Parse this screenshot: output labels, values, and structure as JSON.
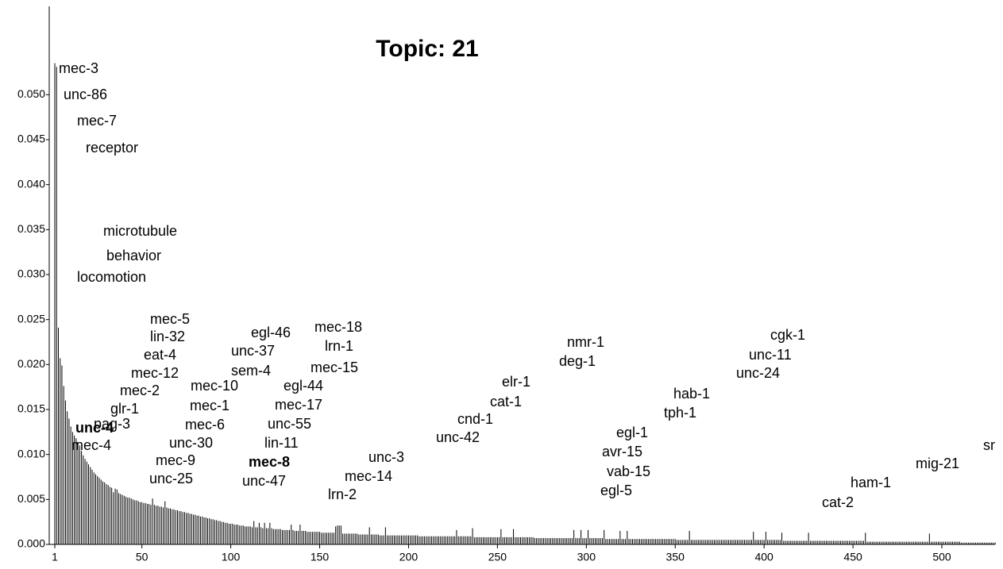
{
  "chart_data": {
    "type": "bar",
    "title": "Topic:  21",
    "color": "#000000",
    "xlim": [
      1,
      530
    ],
    "xticks": [
      1,
      50,
      100,
      150,
      200,
      250,
      300,
      350,
      400,
      450,
      500
    ],
    "ylim": [
      0,
      0.06
    ],
    "yticks": [
      {
        "value": 0,
        "label": "0.000"
      },
      {
        "value": 0.005,
        "label": "0.005"
      },
      {
        "value": 0.01,
        "label": "0.010"
      },
      {
        "value": 0.015,
        "label": "0.015"
      },
      {
        "value": 0.02,
        "label": "0.020"
      },
      {
        "value": 0.025,
        "label": "0.025"
      },
      {
        "value": 0.03,
        "label": "0.030"
      },
      {
        "value": 0.035,
        "label": "0.035"
      },
      {
        "value": 0.04,
        "label": "0.040"
      },
      {
        "value": 0.045,
        "label": "0.045"
      },
      {
        "value": 0.05,
        "label": "0.050"
      }
    ],
    "x": [
      1,
      2,
      3,
      4,
      5,
      6,
      7,
      8,
      9,
      10,
      11,
      12,
      13,
      14,
      15,
      16,
      17,
      18,
      19,
      20,
      21,
      22,
      23,
      24,
      25,
      26,
      27,
      28,
      29,
      30,
      31,
      32,
      33,
      34,
      35,
      36,
      37,
      38,
      39,
      40,
      41,
      42,
      43,
      44,
      45,
      46,
      47,
      48,
      49,
      50,
      51,
      52,
      53,
      54,
      55,
      56,
      57,
      58,
      59,
      60,
      61,
      62,
      63,
      64,
      65,
      66,
      67,
      68,
      69,
      70,
      71,
      72,
      73,
      74,
      75,
      76,
      77,
      78,
      79,
      80,
      81,
      82,
      83,
      84,
      85,
      86,
      87,
      88,
      89,
      90,
      91,
      92,
      93,
      94,
      95,
      96,
      97,
      98,
      99,
      100,
      101,
      102,
      103,
      104,
      105,
      106,
      107,
      108,
      109,
      110,
      111,
      112,
      113,
      114,
      115,
      116,
      117,
      118,
      119,
      120,
      121,
      122,
      123,
      124,
      125,
      126,
      127,
      128,
      129,
      130,
      131,
      132,
      133,
      134,
      135,
      136,
      137,
      138,
      139,
      140,
      141,
      142,
      143,
      144,
      145,
      146,
      147,
      148,
      149,
      150,
      151,
      152,
      153,
      154,
      155,
      156,
      157,
      158,
      159,
      160,
      161,
      162,
      163,
      164,
      165,
      166,
      167,
      168,
      169,
      170,
      171,
      172,
      173,
      174,
      175,
      176,
      177,
      178,
      179,
      180,
      181,
      182,
      183,
      184,
      185,
      186,
      187,
      188,
      189,
      190,
      191,
      192,
      193,
      194,
      195,
      196,
      197,
      198,
      199,
      200,
      201,
      202,
      203,
      204,
      205,
      206,
      207,
      208,
      209,
      210,
      211,
      212,
      213,
      214,
      215,
      216,
      217,
      218,
      219,
      220,
      221,
      222,
      223,
      224,
      225,
      226,
      227,
      228,
      229,
      230,
      231,
      232,
      233,
      234,
      235,
      236,
      237,
      238,
      239,
      240,
      241,
      242,
      243,
      244,
      245,
      246,
      247,
      248,
      249,
      250,
      251,
      252,
      253,
      254,
      255,
      256,
      257,
      258,
      259,
      260,
      261,
      262,
      263,
      264,
      265,
      266,
      267,
      268,
      269,
      270,
      271,
      272,
      273,
      274,
      275,
      276,
      277,
      278,
      279,
      280,
      281,
      282,
      283,
      284,
      285,
      286,
      287,
      288,
      289,
      290,
      291,
      292,
      293,
      294,
      295,
      296,
      297,
      298,
      299,
      300,
      301,
      302,
      303,
      304,
      305,
      306,
      307,
      308,
      309,
      310,
      311,
      312,
      313,
      314,
      315,
      316,
      317,
      318,
      319,
      320,
      321,
      322,
      323,
      324,
      325,
      326,
      327,
      328,
      329,
      330,
      331,
      332,
      333,
      334,
      335,
      336,
      337,
      338,
      339,
      340,
      341,
      342,
      343,
      344,
      345,
      346,
      347,
      348,
      349,
      350,
      351,
      352,
      353,
      354,
      355,
      356,
      357,
      358,
      359,
      360,
      361,
      362,
      363,
      364,
      365,
      366,
      367,
      368,
      369,
      370,
      371,
      372,
      373,
      374,
      375,
      376,
      377,
      378,
      379,
      380,
      381,
      382,
      383,
      384,
      385,
      386,
      387,
      388,
      389,
      390,
      391,
      392,
      393,
      394,
      395,
      396,
      397,
      398,
      399,
      400,
      401,
      402,
      403,
      404,
      405,
      406,
      407,
      408,
      409,
      410,
      411,
      412,
      413,
      414,
      415,
      416,
      417,
      418,
      419,
      420,
      421,
      422,
      423,
      424,
      425,
      426,
      427,
      428,
      429,
      430,
      431,
      432,
      433,
      434,
      435,
      436,
      437,
      438,
      439,
      440,
      441,
      442,
      443,
      444,
      445,
      446,
      447,
      448,
      449,
      450,
      451,
      452,
      453,
      454,
      455,
      456,
      457,
      458,
      459,
      460,
      461,
      462,
      463,
      464,
      465,
      466,
      467,
      468,
      469,
      470,
      471,
      472,
      473,
      474,
      475,
      476,
      477,
      478,
      479,
      480,
      481,
      482,
      483,
      484,
      485,
      486,
      487,
      488,
      489,
      490,
      491,
      492,
      493,
      494,
      495,
      496,
      497,
      498,
      499,
      500,
      501,
      502,
      503,
      504,
      505,
      506,
      507,
      508,
      509,
      510,
      511,
      512,
      513,
      514,
      515,
      516,
      517,
      518,
      519,
      520,
      521,
      522,
      523,
      524,
      525,
      526,
      527,
      528,
      529,
      530
    ],
    "values": [
      0.0535,
      0.0531,
      0.0241,
      0.0207,
      0.0199,
      0.0176,
      0.016,
      0.0148,
      0.014,
      0.0131,
      0.0125,
      0.0121,
      0.0118,
      0.0114,
      0.011,
      0.0104,
      0.0099,
      0.0095,
      0.0092,
      0.0089,
      0.0086,
      0.0083,
      0.008,
      0.0078,
      0.0076,
      0.0074,
      0.0072,
      0.007,
      0.0069,
      0.0067,
      0.0066,
      0.0064,
      0.0063,
      0.0058,
      0.0062,
      0.0061,
      0.0057,
      0.0056,
      0.0055,
      0.0054,
      0.0053,
      0.0052,
      0.0052,
      0.0051,
      0.005,
      0.0049,
      0.0049,
      0.0048,
      0.0047,
      0.0047,
      0.0046,
      0.0046,
      0.0045,
      0.0045,
      0.0044,
      0.0051,
      0.0044,
      0.0043,
      0.0043,
      0.0042,
      0.0042,
      0.0041,
      0.0048,
      0.0041,
      0.004,
      0.004,
      0.0039,
      0.0039,
      0.0038,
      0.0038,
      0.0037,
      0.0037,
      0.0036,
      0.0036,
      0.0035,
      0.0035,
      0.0034,
      0.0034,
      0.0033,
      0.0033,
      0.0032,
      0.0032,
      0.0031,
      0.0031,
      0.003,
      0.003,
      0.0029,
      0.0029,
      0.0028,
      0.0028,
      0.0027,
      0.0027,
      0.0026,
      0.0026,
      0.0025,
      0.0025,
      0.0024,
      0.0024,
      0.0023,
      0.0023,
      0.0023,
      0.0022,
      0.0022,
      0.0022,
      0.0021,
      0.0021,
      0.0021,
      0.002,
      0.002,
      0.002,
      0.002,
      0.0019,
      0.0026,
      0.0019,
      0.0019,
      0.0024,
      0.0019,
      0.0018,
      0.0024,
      0.0018,
      0.0018,
      0.0024,
      0.0018,
      0.0017,
      0.0017,
      0.0017,
      0.0017,
      0.0017,
      0.0016,
      0.0016,
      0.0016,
      0.0016,
      0.0016,
      0.0022,
      0.0016,
      0.0015,
      0.0015,
      0.0015,
      0.0022,
      0.0015,
      0.0015,
      0.0015,
      0.0014,
      0.0014,
      0.0014,
      0.0014,
      0.0014,
      0.0014,
      0.0014,
      0.0014,
      0.0013,
      0.0013,
      0.0013,
      0.0013,
      0.0013,
      0.0013,
      0.0013,
      0.0013,
      0.002,
      0.0021,
      0.0021,
      0.0021,
      0.0012,
      0.0012,
      0.0012,
      0.0012,
      0.0012,
      0.0012,
      0.0012,
      0.0012,
      0.0012,
      0.0011,
      0.0011,
      0.0011,
      0.0011,
      0.0011,
      0.0011,
      0.0019,
      0.0011,
      0.0011,
      0.0011,
      0.0011,
      0.0011,
      0.001,
      0.001,
      0.001,
      0.0019,
      0.001,
      0.001,
      0.001,
      0.001,
      0.001,
      0.001,
      0.001,
      0.001,
      0.001,
      0.001,
      0.001,
      0.001,
      0.001,
      0.001,
      0.001,
      0.001,
      0.001,
      0.001,
      0.0009,
      0.0009,
      0.0009,
      0.0009,
      0.0009,
      0.0009,
      0.0009,
      0.0009,
      0.0009,
      0.0009,
      0.0009,
      0.0009,
      0.0009,
      0.0009,
      0.0009,
      0.0009,
      0.0009,
      0.0009,
      0.0009,
      0.0009,
      0.0009,
      0.0016,
      0.0009,
      0.0009,
      0.0009,
      0.0009,
      0.0009,
      0.0009,
      0.0009,
      0.0009,
      0.0018,
      0.0008,
      0.0008,
      0.0008,
      0.0008,
      0.0008,
      0.0008,
      0.0008,
      0.0008,
      0.0008,
      0.0008,
      0.0008,
      0.0008,
      0.0008,
      0.0008,
      0.0008,
      0.0017,
      0.0008,
      0.0008,
      0.0008,
      0.0008,
      0.0008,
      0.0008,
      0.0017,
      0.0008,
      0.0008,
      0.0008,
      0.0008,
      0.0008,
      0.0008,
      0.0008,
      0.0008,
      0.0008,
      0.0008,
      0.0008,
      0.0007,
      0.0007,
      0.0007,
      0.0007,
      0.0007,
      0.0007,
      0.0007,
      0.0007,
      0.0007,
      0.0007,
      0.0007,
      0.0007,
      0.0007,
      0.0007,
      0.0007,
      0.0007,
      0.0007,
      0.0007,
      0.0007,
      0.0007,
      0.0007,
      0.0007,
      0.0016,
      0.0007,
      0.0007,
      0.0007,
      0.0016,
      0.0007,
      0.0007,
      0.0007,
      0.0016,
      0.0007,
      0.0007,
      0.0007,
      0.0007,
      0.0007,
      0.0007,
      0.0007,
      0.0007,
      0.0016,
      0.0006,
      0.0006,
      0.0006,
      0.0006,
      0.0006,
      0.0006,
      0.0006,
      0.0006,
      0.0015,
      0.0006,
      0.0006,
      0.0006,
      0.0015,
      0.0006,
      0.0006,
      0.0006,
      0.0006,
      0.0006,
      0.0006,
      0.0006,
      0.0006,
      0.0006,
      0.0006,
      0.0006,
      0.0006,
      0.0006,
      0.0006,
      0.0006,
      0.0006,
      0.0006,
      0.0006,
      0.0006,
      0.0006,
      0.0006,
      0.0006,
      0.0006,
      0.0006,
      0.0006,
      0.0006,
      0.0006,
      0.0005,
      0.0005,
      0.0005,
      0.0005,
      0.0005,
      0.0005,
      0.0005,
      0.0015,
      0.0005,
      0.0005,
      0.0005,
      0.0005,
      0.0005,
      0.0005,
      0.0005,
      0.0005,
      0.0005,
      0.0005,
      0.0005,
      0.0005,
      0.0005,
      0.0005,
      0.0005,
      0.0005,
      0.0005,
      0.0005,
      0.0005,
      0.0005,
      0.0005,
      0.0005,
      0.0005,
      0.0005,
      0.0005,
      0.0005,
      0.0005,
      0.0005,
      0.0005,
      0.0005,
      0.0005,
      0.0005,
      0.0005,
      0.0005,
      0.0005,
      0.0014,
      0.0005,
      0.0005,
      0.0005,
      0.0005,
      0.0005,
      0.0005,
      0.0014,
      0.0005,
      0.0005,
      0.0005,
      0.0005,
      0.0005,
      0.0005,
      0.0005,
      0.0005,
      0.0013,
      0.0004,
      0.0004,
      0.0004,
      0.0004,
      0.0004,
      0.0004,
      0.0004,
      0.0004,
      0.0004,
      0.0004,
      0.0004,
      0.0004,
      0.0004,
      0.0004,
      0.0013,
      0.0004,
      0.0004,
      0.0004,
      0.0004,
      0.0004,
      0.0004,
      0.0004,
      0.0004,
      0.0004,
      0.0004,
      0.0004,
      0.0004,
      0.0004,
      0.0004,
      0.0004,
      0.0004,
      0.0004,
      0.0004,
      0.0004,
      0.0004,
      0.0004,
      0.0004,
      0.0004,
      0.0004,
      0.0004,
      0.0004,
      0.0004,
      0.0004,
      0.0004,
      0.0004,
      0.0004,
      0.0013,
      0.0003,
      0.0003,
      0.0003,
      0.0003,
      0.0003,
      0.0003,
      0.0003,
      0.0003,
      0.0003,
      0.0003,
      0.0003,
      0.0003,
      0.0003,
      0.0003,
      0.0003,
      0.0003,
      0.0003,
      0.0003,
      0.0003,
      0.0003,
      0.0003,
      0.0003,
      0.0003,
      0.0003,
      0.0003,
      0.0003,
      0.0003,
      0.0003,
      0.0003,
      0.0003,
      0.0003,
      0.0003,
      0.0003,
      0.0003,
      0.0003,
      0.0012,
      0.0003,
      0.0003,
      0.0003,
      0.0003,
      0.0003,
      0.0003,
      0.0003,
      0.0003,
      0.0003,
      0.0003,
      0.0003,
      0.0003,
      0.0003,
      0.0003,
      0.0003,
      0.0003,
      0.0003,
      0.0002,
      0.0002,
      0.0002,
      0.0002,
      0.0002,
      0.0002,
      0.0002,
      0.0002,
      0.0002,
      0.0002,
      0.0002,
      0.0002,
      0.0002,
      0.0002,
      0.0002,
      0.0002,
      0.0002,
      0.0002,
      0.0002,
      0.0002
    ],
    "annotations": [
      {
        "text": "mec-3"
      },
      {
        "text": "unc-86"
      },
      {
        "text": "mec-7"
      },
      {
        "text": "receptor"
      },
      {
        "text": "microtubule"
      },
      {
        "text": "behavior"
      },
      {
        "text": "locomotion"
      },
      {
        "text": "mec-5"
      },
      {
        "text": "lin-32"
      },
      {
        "text": "eat-4"
      },
      {
        "text": "mec-12"
      },
      {
        "text": "mec-2"
      },
      {
        "text": "glr-1"
      },
      {
        "text": "pag-3"
      },
      {
        "text": "unc-4",
        "bold": true
      },
      {
        "text": "mec-4"
      },
      {
        "text": "mec-10"
      },
      {
        "text": "mec-1"
      },
      {
        "text": "mec-6"
      },
      {
        "text": "unc-30"
      },
      {
        "text": "mec-9"
      },
      {
        "text": "unc-25"
      },
      {
        "text": "egl-46"
      },
      {
        "text": "unc-37"
      },
      {
        "text": "sem-4"
      },
      {
        "text": "egl-44"
      },
      {
        "text": "mec-17"
      },
      {
        "text": "unc-55"
      },
      {
        "text": "lin-11"
      },
      {
        "text": "mec-8",
        "bold": true
      },
      {
        "text": "unc-47"
      },
      {
        "text": "mec-18"
      },
      {
        "text": "lrn-1"
      },
      {
        "text": "mec-15"
      },
      {
        "text": "unc-3"
      },
      {
        "text": "mec-14"
      },
      {
        "text": "lrn-2"
      },
      {
        "text": "elr-1"
      },
      {
        "text": "cat-1"
      },
      {
        "text": "cnd-1"
      },
      {
        "text": "unc-42"
      },
      {
        "text": "nmr-1"
      },
      {
        "text": "deg-1"
      },
      {
        "text": "egl-1"
      },
      {
        "text": "avr-15"
      },
      {
        "text": "vab-15"
      },
      {
        "text": "egl-5"
      },
      {
        "text": "hab-1"
      },
      {
        "text": "tph-1"
      },
      {
        "text": "cgk-1"
      },
      {
        "text": "unc-11"
      },
      {
        "text": "unc-24"
      },
      {
        "text": "cat-2"
      },
      {
        "text": "ham-1"
      },
      {
        "text": "mig-21"
      },
      {
        "text": "sm"
      }
    ]
  }
}
